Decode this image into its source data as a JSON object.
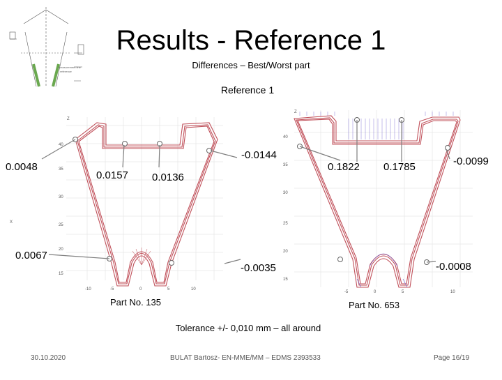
{
  "slide": {
    "title": "Results - Reference 1",
    "subtitle": "Differences – Best/Worst part",
    "reference_label": "Reference 1",
    "tolerance": "Tolerance +/- 0,010 mm – all around"
  },
  "left_plot": {
    "part_label": "Part No. 135",
    "values": [
      "0.0048",
      "0.0157",
      "0.0136",
      "-0.0144",
      "0.0067",
      "-0.0035"
    ],
    "y_ticks": [
      "40",
      "35",
      "30",
      "25",
      "20",
      "15"
    ],
    "x_ticks": [
      "-10",
      "-5",
      "0",
      "5",
      "10"
    ]
  },
  "right_plot": {
    "part_label": "Part No. 653",
    "values": [
      "0.1822",
      "0.1785",
      "-0.0099",
      "-0.0008"
    ],
    "y_ticks": [
      "40",
      "35",
      "30",
      "25",
      "20",
      "15"
    ],
    "x_ticks": [
      "-5",
      "0",
      "5",
      "10"
    ]
  },
  "footer": {
    "date": "30.10.2020",
    "author": "BULAT Bartosz- EN-MME/MM – EDMS 2393533",
    "page": "Page 16/19"
  },
  "colors": {
    "profile_red": "#c0505a",
    "leader_gray": "#7f7f7f",
    "grid": "#e4e4e4",
    "deviation_purple": "#6a5acd"
  }
}
